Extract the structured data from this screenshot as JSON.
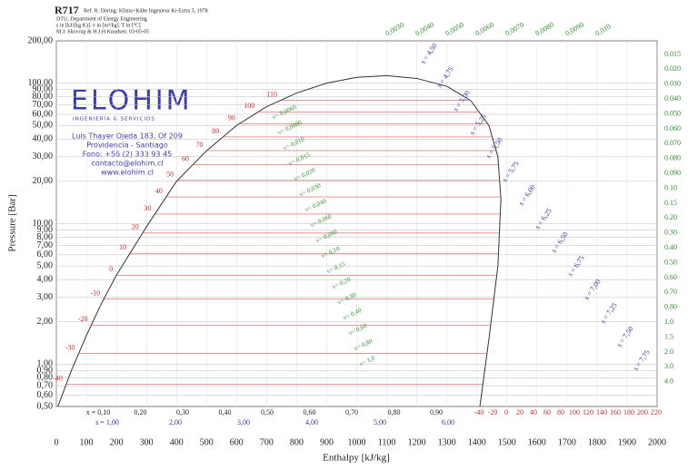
{
  "chart_data": {
    "type": "line",
    "title": "R717",
    "subtitle": [
      "Ref. R. Döring: Klima+Kälte Ingenieur Ki-Extra 5, 1978",
      "DTU, Department of Energy Engineering",
      "s in [kJ/(kg K)]. v in [m³/kg]. T in [ºC]",
      "M.J. Skovrup & H.J.H Knudsen. 03-05-05"
    ],
    "x_label": "Enthalpy [kJ/kg]",
    "y_label": "Pressure [Bar]",
    "xlim": [
      0,
      2000
    ],
    "xticks": [
      0,
      100,
      200,
      300,
      400,
      500,
      600,
      700,
      800,
      900,
      1000,
      1100,
      1200,
      1300,
      1400,
      1500,
      1600,
      1700,
      1800,
      1900,
      2000
    ],
    "ylim": [
      0.5,
      200
    ],
    "yscale": "log",
    "grid": true,
    "yticks": [
      {
        "value": 0.5,
        "label": "0,50"
      },
      {
        "value": 0.6,
        "label": "0,60"
      },
      {
        "value": 0.7,
        "label": "0,70"
      },
      {
        "value": 0.8,
        "label": "0,80"
      },
      {
        "value": 0.9,
        "label": "0,90"
      },
      {
        "value": 1,
        "label": "1,00"
      },
      {
        "value": 2,
        "label": "2,00"
      },
      {
        "value": 3,
        "label": "3,00"
      },
      {
        "value": 4,
        "label": "4,00"
      },
      {
        "value": 5,
        "label": "5,00"
      },
      {
        "value": 6,
        "label": "6,00"
      },
      {
        "value": 7,
        "label": "7,00"
      },
      {
        "value": 8,
        "label": "8,00"
      },
      {
        "value": 9,
        "label": "9,00"
      },
      {
        "value": 10,
        "label": "10,00"
      },
      {
        "value": 20,
        "label": "20,00"
      },
      {
        "value": 30,
        "label": "30,00"
      },
      {
        "value": 40,
        "label": "40,00"
      },
      {
        "value": 50,
        "label": "50,00"
      },
      {
        "value": 60,
        "label": "60,00"
      },
      {
        "value": 70,
        "label": "70,00"
      },
      {
        "value": 80,
        "label": "80,00"
      },
      {
        "value": 90,
        "label": "90,00"
      },
      {
        "value": 100,
        "label": "100,00"
      },
      {
        "value": 200,
        "label": "200,00"
      }
    ],
    "series": [
      {
        "color": "#333333",
        "x": [
          5,
          50,
          100,
          150,
          200,
          300,
          400,
          500,
          600,
          700,
          800,
          900,
          1000,
          1100
        ],
        "values": [
          0.5,
          0.9,
          1.6,
          2.7,
          4.3,
          9.5,
          20,
          33,
          50,
          68,
          85,
          100,
          110,
          113
        ]
      },
      {
        "color": "#333333",
        "x": [
          1100,
          1200,
          1300,
          1380,
          1440,
          1470,
          1480,
          1470,
          1440,
          1410
        ],
        "values": [
          113,
          108,
          95,
          75,
          50,
          30,
          15,
          5,
          1.5,
          0.5
        ]
      }
    ],
    "isotherm_color": "#d03030",
    "isotherms": [
      {
        "t": -40,
        "p": 0.72
      },
      {
        "t": -30,
        "p": 1.19
      },
      {
        "t": -20,
        "p": 1.9
      },
      {
        "t": -10,
        "p": 2.9
      },
      {
        "t": 0,
        "p": 4.3
      },
      {
        "t": 10,
        "p": 6.15
      },
      {
        "t": 20,
        "p": 8.57
      },
      {
        "t": 30,
        "p": 11.7
      },
      {
        "t": 40,
        "p": 15.5
      },
      {
        "t": 50,
        "p": 20.3
      },
      {
        "t": 60,
        "p": 26.2
      },
      {
        "t": 70,
        "p": 33.1
      },
      {
        "t": 80,
        "p": 41.4
      },
      {
        "t": 90,
        "p": 51.2
      },
      {
        "t": 100,
        "p": 62.5
      },
      {
        "t": 110,
        "p": 75.6
      }
    ],
    "quality_labels": [
      "x = 0,10",
      "0,20",
      "0,30",
      "0,40",
      "0,50",
      "0,60",
      "0,70",
      "0,80",
      "0,90"
    ],
    "entropy_labels": [
      "s = 1,00",
      "2,00",
      "3,00",
      "4,00",
      "5,00",
      "6,00"
    ],
    "entropy_diagonal_labels": [
      "s = 4,50",
      "s = 4,75",
      "s = 5,00",
      "s = 5,25",
      "s = 5,50",
      "s = 5,75",
      "s = 6,00",
      "s = 6,25",
      "s = 6,50",
      "s = 6,75",
      "s = 7,00",
      "s = 7,25",
      "s = 7,50",
      "s = 7,75"
    ],
    "temperature_axis": [
      -40,
      -20,
      0,
      20,
      40,
      60,
      80,
      100,
      120,
      140,
      160,
      180,
      200,
      220
    ],
    "volume_top_labels": [
      "0,0030",
      "0,0040",
      "0,0050",
      "0,0060",
      "0,0070",
      "0,0080",
      "0,0090",
      "0,010"
    ],
    "volume_right_labels": [
      "0.015",
      "0.020",
      "0.030",
      "0.040",
      "0.050",
      "0.060",
      "0.070",
      "0.080",
      "0.090",
      "0.10",
      "0.15",
      "0.20",
      "0.30",
      "0.40",
      "0.50",
      "0.60",
      "0.70",
      "0.80",
      "1.0",
      "1.5",
      "2.0",
      "3.0",
      "4.0"
    ],
    "volume_dome_labels": [
      "v= 0,0060",
      "v= 0,0080",
      "v= 0,010",
      "v= 0,015",
      "v= 0,020",
      "v= 0,030",
      "v= 0,040",
      "v= 0,060",
      "v= 0,080",
      "v= 0,10",
      "v= 0,15",
      "v= 0,20",
      "v= 0,30",
      "v= 0,40",
      "v= 0,60",
      "v= 0,80",
      "v= 1,0"
    ]
  },
  "logo": {
    "name": "ELOHIM",
    "tagline": "INGENIERÍA & SERVICIOS",
    "lines": [
      "Luis Thayer Ojeda 183, Of 209",
      "Providencia - Santiago",
      "Fono: +56 (2) 333 93 45",
      "contacto@elohim.cl",
      "www.elohim.cl"
    ]
  }
}
